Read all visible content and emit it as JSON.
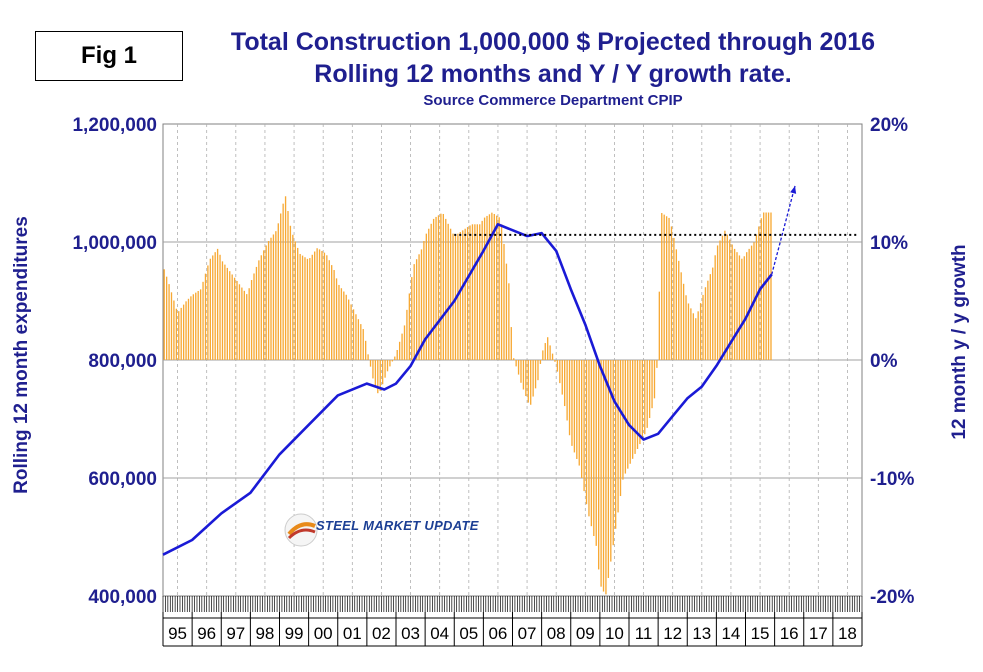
{
  "fig_label": "Fig 1",
  "title_line1": "Total Construction 1,000,000 $ Projected through 2016",
  "title_line2": "Rolling 12 months and Y / Y growth rate.",
  "subtitle": "Source Commerce Department CPIP",
  "logo_text": "STEEL MARKET UPDATE",
  "colors": {
    "title": "#1f1f8f",
    "line": "#1a1ad6",
    "bars": "#f7a934",
    "grid": "#a0a0a0"
  },
  "chart_data": {
    "type": "bar+line",
    "title": "Total Construction 1,000,000 $ Projected through 2016",
    "subtitle": "Rolling 12 months and Y / Y growth rate.",
    "ylabel_left": "Rolling 12 month expenditures",
    "ylabel_right": "12 month y / y growth",
    "ylim_left": [
      400000,
      1200000
    ],
    "ylim_right": [
      -20,
      20
    ],
    "left_ticks": [
      "400,000",
      "600,000",
      "800,000",
      "1,000,000",
      "1,200,000"
    ],
    "right_ticks": [
      "-20%",
      "-10%",
      "0%",
      "10%",
      "20%"
    ],
    "x_categories": [
      "95",
      "96",
      "97",
      "98",
      "99",
      "00",
      "01",
      "02",
      "03",
      "04",
      "05",
      "06",
      "07",
      "08",
      "09",
      "10",
      "11",
      "12",
      "13",
      "14",
      "15",
      "16",
      "17",
      "18"
    ],
    "growth_series": {
      "name": "12 month y / y growth (%)",
      "axis": "right",
      "points": [
        [
          1995.0,
          8.0
        ],
        [
          1995.2,
          6.5
        ],
        [
          1995.5,
          4.0
        ],
        [
          1995.8,
          5.0
        ],
        [
          1996.0,
          5.5
        ],
        [
          1996.3,
          6.0
        ],
        [
          1996.6,
          8.5
        ],
        [
          1996.9,
          9.5
        ],
        [
          1997.0,
          8.5
        ],
        [
          1997.3,
          7.5
        ],
        [
          1997.6,
          6.5
        ],
        [
          1997.9,
          5.5
        ],
        [
          1998.0,
          6.5
        ],
        [
          1998.3,
          8.5
        ],
        [
          1998.6,
          10.0
        ],
        [
          1998.9,
          11.0
        ],
        [
          1999.0,
          12.0
        ],
        [
          1999.2,
          14.0
        ],
        [
          1999.4,
          11.0
        ],
        [
          1999.7,
          9.0
        ],
        [
          2000.0,
          8.5
        ],
        [
          2000.3,
          9.5
        ],
        [
          2000.6,
          9.0
        ],
        [
          2000.9,
          7.5
        ],
        [
          2001.0,
          6.5
        ],
        [
          2001.3,
          5.5
        ],
        [
          2001.6,
          4.0
        ],
        [
          2001.9,
          2.5
        ],
        [
          2002.0,
          1.0
        ],
        [
          2002.2,
          -1.5
        ],
        [
          2002.4,
          -3.0
        ],
        [
          2002.7,
          -1.0
        ],
        [
          2003.0,
          0.5
        ],
        [
          2003.3,
          3.0
        ],
        [
          2003.6,
          8.0
        ],
        [
          2003.9,
          9.5
        ],
        [
          2004.0,
          10.5
        ],
        [
          2004.3,
          12.0
        ],
        [
          2004.6,
          12.5
        ],
        [
          2004.9,
          11.0
        ],
        [
          2005.0,
          10.5
        ],
        [
          2005.3,
          11.0
        ],
        [
          2005.6,
          11.5
        ],
        [
          2005.9,
          11.5
        ],
        [
          2006.0,
          12.0
        ],
        [
          2006.3,
          12.5
        ],
        [
          2006.6,
          12.0
        ],
        [
          2006.9,
          6.0
        ],
        [
          2007.0,
          0.5
        ],
        [
          2007.3,
          -2.0
        ],
        [
          2007.6,
          -4.0
        ],
        [
          2007.9,
          -1.5
        ],
        [
          2008.0,
          0.5
        ],
        [
          2008.2,
          2.0
        ],
        [
          2008.5,
          -0.5
        ],
        [
          2008.8,
          -4.0
        ],
        [
          2009.0,
          -7.0
        ],
        [
          2009.3,
          -9.0
        ],
        [
          2009.6,
          -13.0
        ],
        [
          2009.9,
          -16.0
        ],
        [
          2010.0,
          -19.0
        ],
        [
          2010.2,
          -20.0
        ],
        [
          2010.5,
          -15.0
        ],
        [
          2010.8,
          -10.0
        ],
        [
          2011.0,
          -9.0
        ],
        [
          2011.3,
          -7.5
        ],
        [
          2011.6,
          -6.0
        ],
        [
          2011.9,
          -3.0
        ],
        [
          2012.0,
          1.0
        ],
        [
          2012.1,
          12.5
        ],
        [
          2012.4,
          12.0
        ],
        [
          2012.7,
          8.5
        ],
        [
          2013.0,
          5.0
        ],
        [
          2013.3,
          3.5
        ],
        [
          2013.6,
          6.0
        ],
        [
          2013.9,
          8.0
        ],
        [
          2014.0,
          9.5
        ],
        [
          2014.3,
          11.0
        ],
        [
          2014.6,
          9.5
        ],
        [
          2014.9,
          8.5
        ],
        [
          2015.0,
          9.0
        ],
        [
          2015.3,
          10.0
        ],
        [
          2015.6,
          12.5
        ],
        [
          2015.9,
          12.5
        ]
      ]
    },
    "spending_series": {
      "name": "Rolling 12 month expenditures",
      "axis": "left",
      "points": [
        [
          1995.0,
          470000
        ],
        [
          1996.0,
          495000
        ],
        [
          1997.0,
          540000
        ],
        [
          1998.0,
          575000
        ],
        [
          1999.0,
          640000
        ],
        [
          2000.0,
          690000
        ],
        [
          2001.0,
          740000
        ],
        [
          2002.0,
          760000
        ],
        [
          2002.6,
          750000
        ],
        [
          2003.0,
          760000
        ],
        [
          2003.5,
          790000
        ],
        [
          2004.0,
          835000
        ],
        [
          2005.0,
          900000
        ],
        [
          2006.0,
          985000
        ],
        [
          2006.5,
          1030000
        ],
        [
          2007.0,
          1020000
        ],
        [
          2007.5,
          1010000
        ],
        [
          2008.0,
          1015000
        ],
        [
          2008.5,
          985000
        ],
        [
          2009.0,
          920000
        ],
        [
          2009.5,
          860000
        ],
        [
          2010.0,
          790000
        ],
        [
          2010.5,
          730000
        ],
        [
          2011.0,
          690000
        ],
        [
          2011.5,
          665000
        ],
        [
          2012.0,
          675000
        ],
        [
          2012.5,
          705000
        ],
        [
          2013.0,
          735000
        ],
        [
          2013.5,
          755000
        ],
        [
          2014.0,
          790000
        ],
        [
          2014.5,
          830000
        ],
        [
          2015.0,
          870000
        ],
        [
          2015.5,
          920000
        ],
        [
          2015.9,
          945000
        ]
      ]
    },
    "projection": {
      "axis": "left",
      "from": [
        2015.9,
        945000
      ],
      "to": [
        2016.7,
        1095000
      ]
    },
    "reference_line": {
      "axis": "left",
      "value": 1012000,
      "from_x": 2005.0,
      "to_x": 2018.9,
      "style": "dotted"
    },
    "grid": {
      "horizontal": true,
      "vertical": "dashed"
    }
  }
}
